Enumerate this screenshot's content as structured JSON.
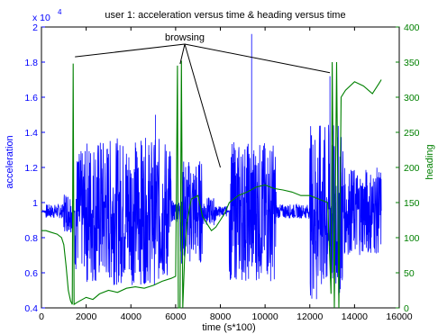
{
  "chart_data": {
    "type": "line",
    "title": "user 1: acceleration versus time & heading versus time",
    "xlabel": "time (s*100)",
    "x_ticks": [
      "0",
      "2000",
      "4000",
      "6000",
      "8000",
      "10000",
      "12000",
      "14000",
      "16000"
    ],
    "xlim": [
      0,
      16000
    ],
    "left_axis": {
      "label": "acceleration",
      "exponent": "x 10",
      "exponent_power": "4",
      "ylim": [
        0.4,
        2.0
      ],
      "ticks": [
        "0.4",
        "0.6",
        "0.8",
        "1",
        "1.2",
        "1.4",
        "1.6",
        "1.8",
        "2"
      ],
      "color": "#0000ff"
    },
    "right_axis": {
      "label": "heading",
      "ylim": [
        0,
        400
      ],
      "ticks": [
        "0",
        "50",
        "100",
        "150",
        "200",
        "250",
        "300",
        "350",
        "400"
      ],
      "color": "#008000"
    },
    "annotation": {
      "text": "browsing",
      "targets": [
        [
          1500,
          1.83
        ],
        [
          6200,
          1.79
        ],
        [
          8000,
          1.2
        ],
        [
          12900,
          1.74
        ]
      ]
    },
    "series": [
      {
        "name": "acceleration",
        "axis": "left",
        "color": "#0000ff",
        "baseline": 0.95,
        "segments": [
          {
            "x_start": 200,
            "x_end": 1000,
            "amplitude": 0.04
          },
          {
            "x_start": 1000,
            "x_end": 1400,
            "amplitude": 0.12
          },
          {
            "x_start": 1500,
            "x_end": 2000,
            "amplitude": 0.35
          },
          {
            "x_start": 2000,
            "x_end": 5800,
            "amplitude": 0.42
          },
          {
            "x_start": 5800,
            "x_end": 6200,
            "amplitude": 0.06
          },
          {
            "x_start": 6200,
            "x_end": 7200,
            "amplitude": 0.3
          },
          {
            "x_start": 7200,
            "x_end": 7800,
            "amplitude": 0.08
          },
          {
            "x_start": 7800,
            "x_end": 8300,
            "amplitude": 0.03
          },
          {
            "x_start": 8400,
            "x_end": 10500,
            "amplitude": 0.4
          },
          {
            "x_start": 10500,
            "x_end": 12000,
            "amplitude": 0.04
          },
          {
            "x_start": 12000,
            "x_end": 13500,
            "amplitude": 0.5
          },
          {
            "x_start": 13500,
            "x_end": 15200,
            "amplitude": 0.25
          }
        ],
        "spikes": [
          [
            9400,
            1.96
          ],
          [
            12900,
            1.72
          ],
          [
            12300,
            0.45
          ],
          [
            5100,
            1.5
          ]
        ]
      },
      {
        "name": "heading",
        "axis": "right",
        "color": "#008000",
        "points": [
          [
            0,
            110
          ],
          [
            200,
            110
          ],
          [
            400,
            108
          ],
          [
            700,
            105
          ],
          [
            900,
            100
          ],
          [
            1000,
            90
          ],
          [
            1100,
            60
          ],
          [
            1200,
            25
          ],
          [
            1300,
            10
          ],
          [
            1380,
            5
          ],
          [
            1420,
            348
          ],
          [
            1460,
            5
          ],
          [
            1600,
            8
          ],
          [
            2000,
            15
          ],
          [
            2300,
            12
          ],
          [
            2600,
            20
          ],
          [
            3000,
            25
          ],
          [
            3400,
            22
          ],
          [
            3800,
            28
          ],
          [
            4200,
            30
          ],
          [
            4600,
            28
          ],
          [
            5000,
            32
          ],
          [
            5400,
            38
          ],
          [
            5800,
            42
          ],
          [
            6000,
            45
          ],
          [
            6080,
            345
          ],
          [
            6120,
            0
          ],
          [
            6200,
            0
          ],
          [
            6260,
            352
          ],
          [
            6320,
            0
          ],
          [
            6400,
            70
          ],
          [
            6500,
            120
          ],
          [
            6700,
            155
          ],
          [
            7000,
            160
          ],
          [
            7200,
            130
          ],
          [
            7400,
            120
          ],
          [
            7600,
            110
          ],
          [
            7800,
            115
          ],
          [
            8000,
            125
          ],
          [
            8200,
            135
          ],
          [
            8400,
            150
          ],
          [
            8800,
            160
          ],
          [
            9200,
            165
          ],
          [
            9600,
            172
          ],
          [
            10000,
            175
          ],
          [
            10400,
            170
          ],
          [
            10800,
            168
          ],
          [
            11200,
            165
          ],
          [
            11600,
            160
          ],
          [
            12000,
            160
          ],
          [
            12400,
            155
          ],
          [
            12800,
            150
          ],
          [
            12950,
            20
          ],
          [
            13000,
            350
          ],
          [
            13100,
            0
          ],
          [
            13200,
            350
          ],
          [
            13300,
            0
          ],
          [
            13400,
            300
          ],
          [
            13600,
            310
          ],
          [
            14000,
            322
          ],
          [
            14400,
            316
          ],
          [
            14800,
            305
          ],
          [
            15100,
            320
          ],
          [
            15200,
            325
          ]
        ]
      }
    ]
  }
}
